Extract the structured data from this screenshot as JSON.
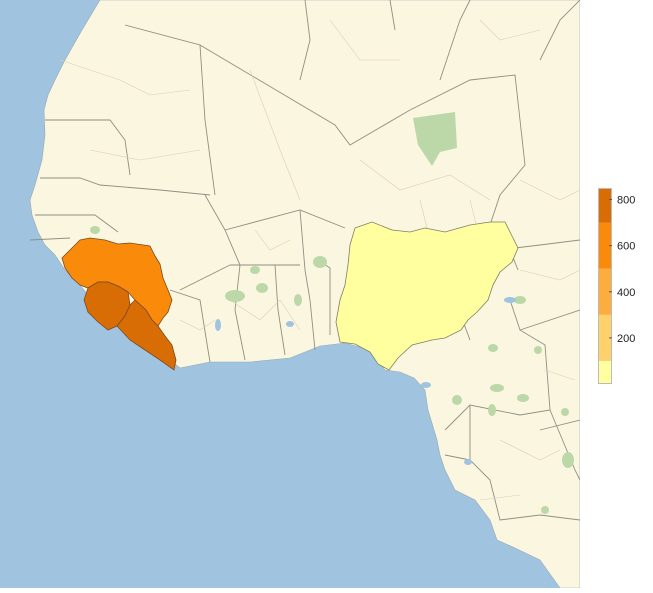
{
  "colors": {
    "ocean": "#a0c3e0",
    "land": "#fbf6df",
    "border": "#8f8f82",
    "minor_border": "#d9cfb8",
    "park": "#bcd8a8",
    "guinea": "#fa8a0a",
    "liberia": "#d86d06",
    "sierra_leone": "#d86d06",
    "nigeria": "#ffff9f"
  },
  "regions": [
    {
      "name": "",
      "value": 624
    },
    {
      "name": "",
      "value": 800
    },
    {
      "name": "",
      "value": 780
    },
    {
      "name": "",
      "value": 20
    }
  ],
  "legend": {
    "ticks": [
      "800",
      "600",
      "400",
      "200"
    ],
    "bins": [
      {
        "from": 0,
        "to": 100,
        "color": "#ffff9f"
      },
      {
        "from": 100,
        "to": 300,
        "color": "#fed16b"
      },
      {
        "from": 300,
        "to": 500,
        "color": "#fdac3e"
      },
      {
        "from": 500,
        "to": 700,
        "color": "#fa8a0a"
      },
      {
        "from": 700,
        "to": 850,
        "color": "#d86d06"
      }
    ],
    "min": 0,
    "max": 850
  }
}
